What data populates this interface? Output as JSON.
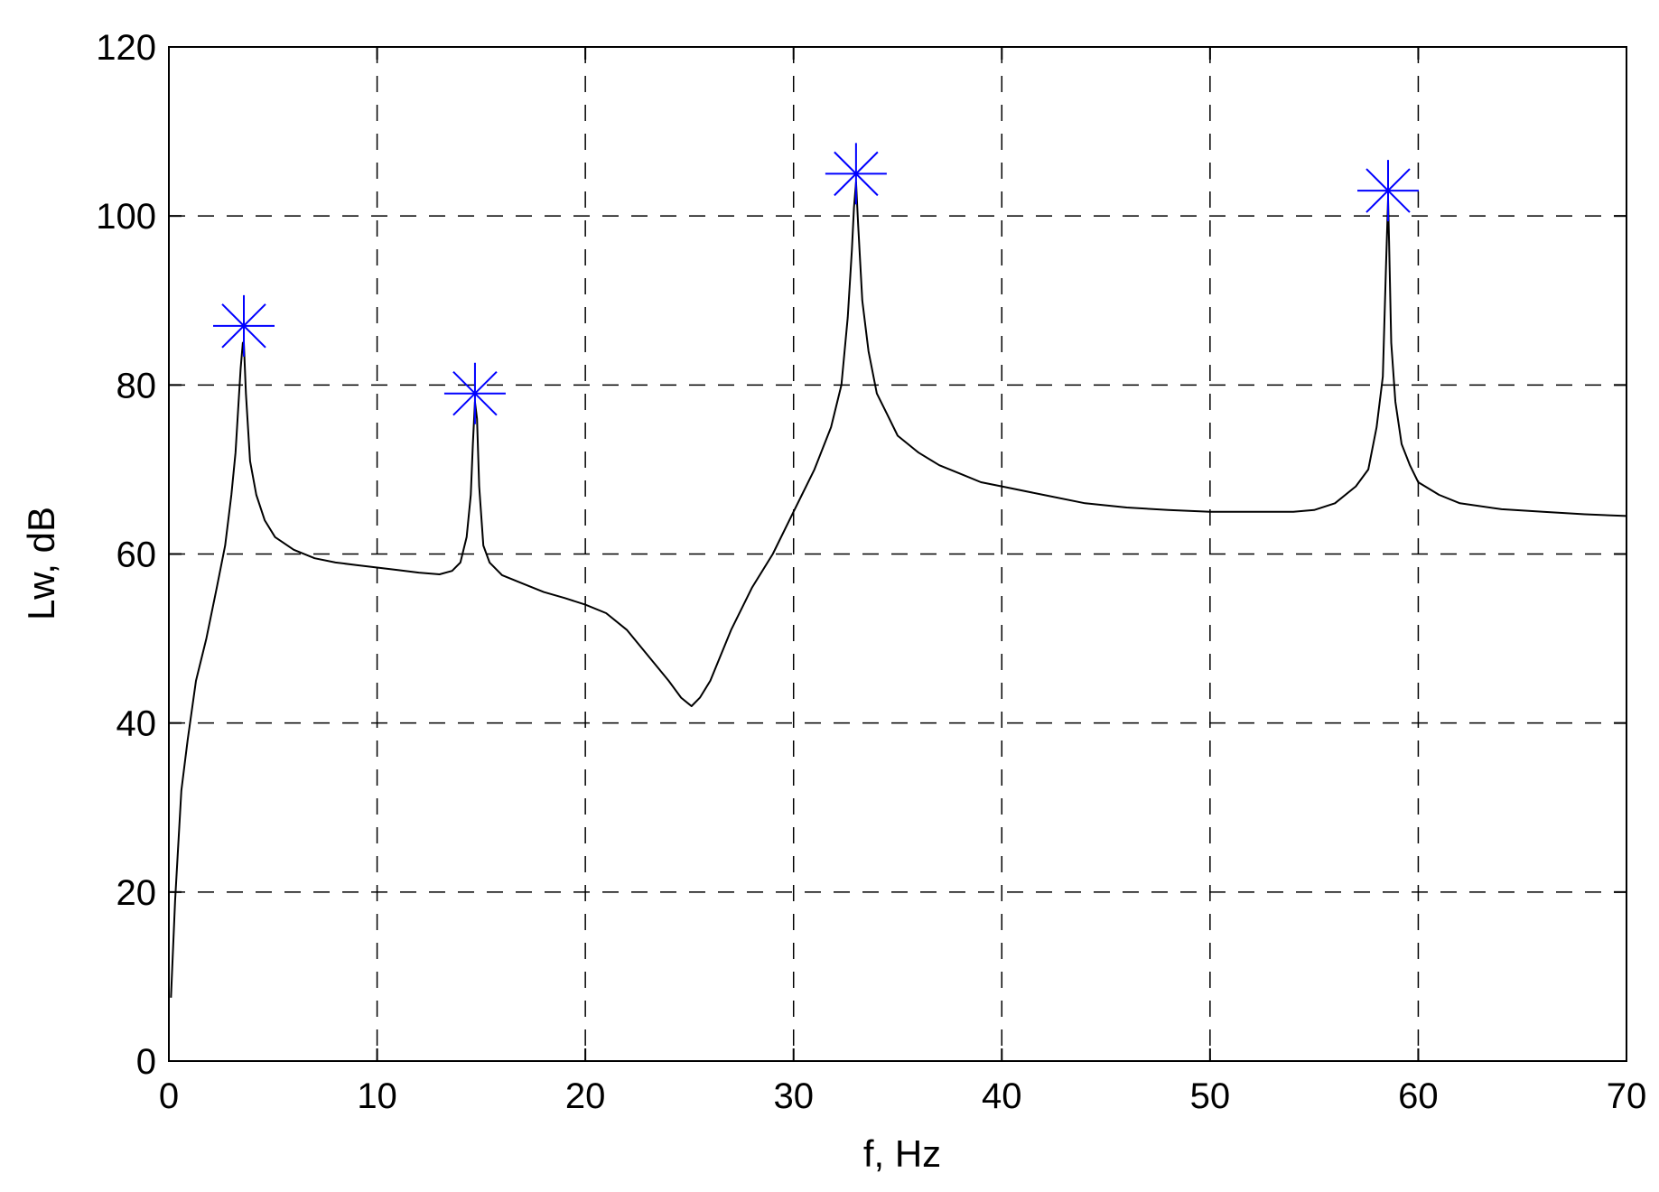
{
  "chart_data": {
    "type": "line",
    "title": "",
    "xlabel": "f, Hz",
    "ylabel": "Lw, dB",
    "xlim": [
      0,
      70
    ],
    "ylim": [
      0,
      120
    ],
    "x_ticks": [
      "0",
      "10",
      "20",
      "30",
      "40",
      "50",
      "60",
      "70"
    ],
    "y_ticks": [
      "0",
      "20",
      "40",
      "60",
      "80",
      "100",
      "120"
    ],
    "grid": true,
    "grid_style": "dashed",
    "legend": "none",
    "colors": {
      "line": "#000000",
      "markers": "#0000ff",
      "grid": "#000000"
    },
    "series": [
      {
        "style": "line",
        "x": [
          0.1,
          0.3,
          0.6,
          0.9,
          1.3,
          1.8,
          2.3,
          2.7,
          3.0,
          3.2,
          3.35,
          3.45,
          3.55,
          3.6,
          3.7,
          3.9,
          4.2,
          4.6,
          5.1,
          6.0,
          7.0,
          8.0,
          9.0,
          10.0,
          11.0,
          12.0,
          13.0,
          13.6,
          14.0,
          14.3,
          14.5,
          14.6,
          14.7,
          14.8,
          14.9,
          15.1,
          15.4,
          16.0,
          17.0,
          18.0,
          19.0,
          20.0,
          21.0,
          22.0,
          23.0,
          24.0,
          24.6,
          25.1,
          25.5,
          26.0,
          27.0,
          28.0,
          29.0,
          30.0,
          31.0,
          31.8,
          32.3,
          32.6,
          32.8,
          32.9,
          33.0,
          33.1,
          33.3,
          33.6,
          34.0,
          34.5,
          35.0,
          36.0,
          37.0,
          38.0,
          39.0,
          40.0,
          42.0,
          44.0,
          46.0,
          48.0,
          50.0,
          52.0,
          54.0,
          55.0,
          56.0,
          57.0,
          57.6,
          58.0,
          58.3,
          58.45,
          58.55,
          58.6,
          58.7,
          58.9,
          59.2,
          59.6,
          60.0,
          61.0,
          62.0,
          64.0,
          66.0,
          68.0,
          70.0
        ],
        "y": [
          7.5,
          19,
          32,
          38,
          45,
          50,
          56,
          61,
          67,
          72,
          78,
          82,
          85,
          85,
          79,
          71,
          67,
          64,
          62,
          60.5,
          59.5,
          59,
          58.7,
          58.4,
          58.1,
          57.8,
          57.6,
          58,
          59,
          62,
          67,
          73,
          78,
          76,
          68,
          61,
          59,
          57.5,
          56.5,
          55.5,
          54.8,
          54,
          53,
          51,
          48,
          45,
          43,
          42,
          43,
          45,
          51,
          56,
          60,
          65,
          70,
          75,
          80,
          88,
          96,
          101,
          104,
          99,
          90,
          84,
          79,
          76.5,
          74,
          72,
          70.5,
          69.5,
          68.5,
          68,
          67,
          66,
          65.5,
          65.2,
          65,
          65,
          65,
          65.2,
          66,
          68,
          70,
          75,
          81,
          94,
          102,
          97,
          85,
          78,
          73,
          70.5,
          68.5,
          67,
          66,
          65.3,
          65,
          64.7,
          64.5
        ]
      },
      {
        "style": "markers",
        "marker": "asterisk",
        "x": [
          3.6,
          14.7,
          33.0,
          58.55
        ],
        "y": [
          87,
          79,
          105,
          103
        ]
      }
    ]
  }
}
